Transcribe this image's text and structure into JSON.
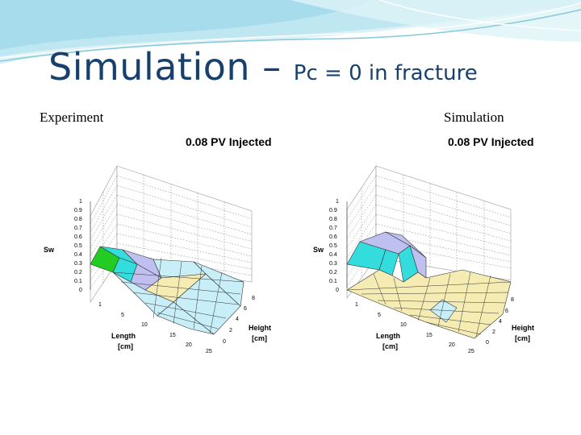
{
  "slide": {
    "title_main": "Simulation – ",
    "title_sub": "Pc = 0 in fracture",
    "left_caption": "Experiment",
    "right_caption": "Simulation"
  },
  "chart_data": [
    {
      "type": "surface",
      "panel": "left",
      "title": "0.08 PV Injected",
      "zlabel": "Sw",
      "xlabel_line1": "Length",
      "xlabel_line2": "[cm]",
      "ylabel_line1": "Height",
      "ylabel_line2": "[cm]",
      "z_ticks": [
        "1",
        "0.9",
        "0.8",
        "0.7",
        "0.6",
        "0.5",
        "0.4",
        "0.3",
        "0.2",
        "0.1",
        "0"
      ],
      "length_ticks": [
        "1",
        "5",
        "10",
        "15",
        "20",
        "25"
      ],
      "height_ticks": [
        "8",
        "6",
        "4",
        "2",
        "0"
      ],
      "zlim": [
        0,
        1
      ],
      "grid": true,
      "colors": {
        "green": "#22cc22",
        "cyan": "#33dddd",
        "lavender": "#c0c0f0",
        "light_cyan": "#c8eef8",
        "cream": "#f5ecb4"
      }
    },
    {
      "type": "surface",
      "panel": "right",
      "title": "0.08 PV Injected",
      "zlabel": "Sw",
      "xlabel_line1": "Length",
      "xlabel_line2": "[cm]",
      "ylabel_line1": "Height",
      "ylabel_line2": "[cm]",
      "z_ticks": [
        "1",
        "0.9",
        "0.8",
        "0.7",
        "0.6",
        "0.5",
        "0.4",
        "0.3",
        "0.2",
        "0.1",
        "0"
      ],
      "length_ticks": [
        "1",
        "5",
        "10",
        "15",
        "20",
        "25"
      ],
      "height_ticks": [
        "8",
        "6",
        "4",
        "2",
        "0"
      ],
      "zlim": [
        0,
        1
      ],
      "grid": true,
      "colors": {
        "cyan": "#33dddd",
        "lavender": "#c0c0f0",
        "light_cyan": "#c8eef8",
        "cream": "#f5ecb4"
      }
    }
  ]
}
